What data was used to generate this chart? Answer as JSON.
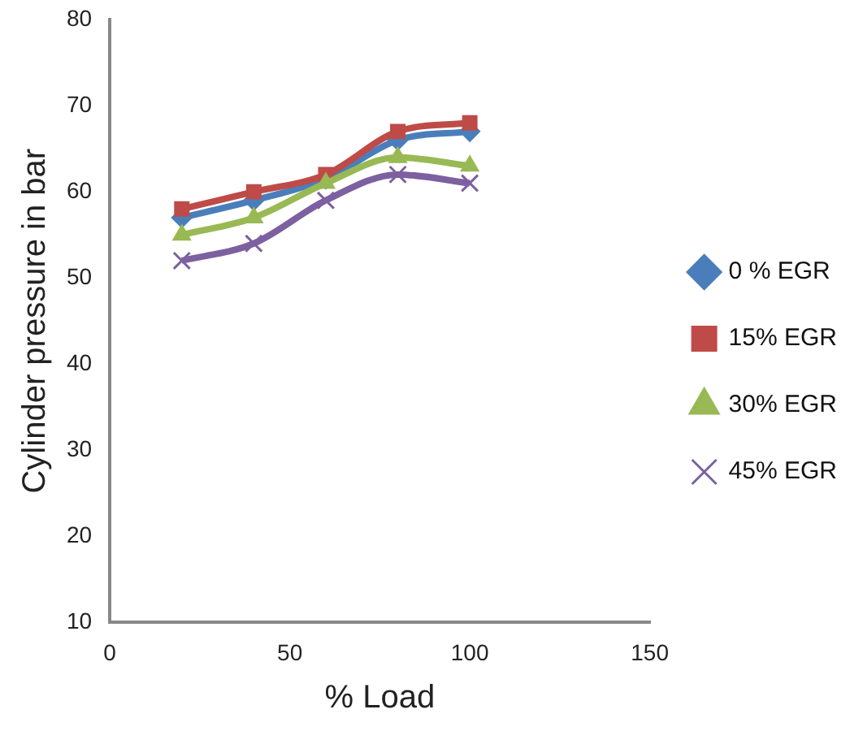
{
  "chart_data": {
    "type": "line",
    "xlabel": "% Load",
    "ylabel": "Cylinder pressure in bar",
    "x": [
      20,
      40,
      60,
      80,
      100
    ],
    "xlim": [
      0,
      150
    ],
    "xticks": [
      0,
      50,
      100,
      150
    ],
    "ylim": [
      10,
      80
    ],
    "yticks": [
      10,
      20,
      30,
      40,
      50,
      60,
      70,
      80
    ],
    "grid": false,
    "legend": "right",
    "series": [
      {
        "name": "0 % EGR",
        "color": "#4a7ebb",
        "marker": "diamond",
        "values": [
          57,
          59,
          61.5,
          66,
          67
        ]
      },
      {
        "name": "15% EGR",
        "color": "#be4b48",
        "marker": "square",
        "values": [
          58,
          60,
          62,
          67,
          68
        ]
      },
      {
        "name": "30% EGR",
        "color": "#98b954",
        "marker": "triangle",
        "values": [
          55,
          57,
          61,
          64,
          63
        ]
      },
      {
        "name": "45% EGR",
        "color": "#7d60a0",
        "marker": "cross",
        "values": [
          52,
          54,
          59,
          62,
          61
        ]
      }
    ]
  }
}
